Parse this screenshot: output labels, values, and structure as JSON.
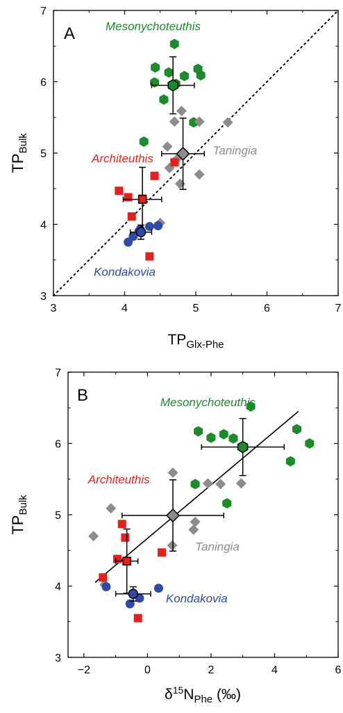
{
  "colors": {
    "mesonychoteuthis": "#1a8c2a",
    "architeuthis": "#e8201c",
    "taningia": "#8c8c8c",
    "kondakovia": "#2f4aa8",
    "axis": "#000000"
  },
  "chart_data": [
    {
      "panel": "A",
      "type": "scatter",
      "xlabel_main": "TP",
      "xlabel_sub": "Glx-Phe",
      "ylabel_main": "TP",
      "ylabel_sub": "Bulk",
      "xlim": [
        3,
        7
      ],
      "ylim": [
        3,
        7
      ],
      "xticks": [
        "3",
        "4",
        "5",
        "6",
        "7"
      ],
      "yticks": [
        "3",
        "4",
        "5",
        "6",
        "7"
      ],
      "reference_line": "1:1 dotted",
      "series": [
        {
          "name": "Mesonychoteuthis",
          "marker": "hexagon",
          "color": "#1a8c2a",
          "label_pos": [
            4.4,
            6.72
          ],
          "points": [
            [
              4.7,
              6.53
            ],
            [
              4.43,
              6.2
            ],
            [
              4.62,
              6.13
            ],
            [
              4.84,
              6.08
            ],
            [
              5.03,
              6.18
            ],
            [
              5.07,
              6.09
            ],
            [
              4.42,
              5.99
            ],
            [
              4.72,
              5.97
            ],
            [
              4.55,
              5.75
            ],
            [
              4.97,
              5.43
            ],
            [
              4.27,
              5.16
            ]
          ],
          "mean": {
            "x": 4.68,
            "y": 5.95,
            "xerr": [
              0.3,
              0.3
            ],
            "yerr": [
              0.4,
              0.4
            ]
          }
        },
        {
          "name": "Taningia",
          "marker": "diamond",
          "color": "#8c8c8c",
          "label_pos": [
            5.55,
            4.98
          ],
          "points": [
            [
              4.8,
              5.59
            ],
            [
              4.7,
              5.44
            ],
            [
              5.05,
              5.44
            ],
            [
              5.45,
              5.43
            ],
            [
              4.6,
              5.09
            ],
            [
              4.8,
              4.98
            ],
            [
              4.63,
              4.79
            ],
            [
              4.75,
              4.93
            ],
            [
              4.78,
              4.57
            ],
            [
              5.05,
              4.7
            ],
            [
              4.5,
              4.02
            ]
          ],
          "mean": {
            "x": 4.82,
            "y": 4.99,
            "xerr": [
              0.3,
              0.3
            ],
            "yerr": [
              0.5,
              0.5
            ]
          }
        },
        {
          "name": "Architeuthis",
          "marker": "square",
          "color": "#e8201c",
          "label_pos": [
            3.97,
            4.87
          ],
          "points": [
            [
              3.92,
              4.47
            ],
            [
              4.05,
              4.38
            ],
            [
              4.25,
              4.36
            ],
            [
              4.42,
              4.68
            ],
            [
              4.1,
              4.11
            ],
            [
              4.35,
              3.55
            ],
            [
              4.7,
              4.87
            ]
          ],
          "mean": {
            "x": 4.25,
            "y": 4.35,
            "xerr": [
              0.27,
              0.27
            ],
            "yerr": [
              0.45,
              0.45
            ]
          }
        },
        {
          "name": "Kondakovia",
          "marker": "circle",
          "color": "#2f4aa8",
          "label_pos": [
            4.0,
            3.28
          ],
          "points": [
            [
              4.22,
              3.93
            ],
            [
              4.35,
              3.97
            ],
            [
              4.47,
              3.98
            ],
            [
              4.12,
              3.83
            ],
            [
              4.05,
              3.75
            ],
            [
              4.2,
              3.9
            ]
          ],
          "mean": {
            "x": 4.23,
            "y": 3.89,
            "xerr": [
              0.15,
              0.15
            ],
            "yerr": [
              0.1,
              0.1
            ]
          }
        }
      ]
    },
    {
      "panel": "B",
      "type": "scatter",
      "xlabel_main": "δ",
      "xlabel_sup": "15",
      "xlabel_rest": "N",
      "xlabel_sub": "Phe",
      "xlabel_unit": " (‰)",
      "ylabel_main": "TP",
      "ylabel_sub": "Bulk",
      "xlim": [
        -2.5,
        6
      ],
      "ylim": [
        3,
        7
      ],
      "xticks": [
        "−2",
        "0",
        "2",
        "4",
        "6"
      ],
      "xtick_values": [
        -2,
        0,
        2,
        4,
        6
      ],
      "yticks": [
        "3",
        "4",
        "5",
        "6",
        "7"
      ],
      "regression_line": {
        "x1": -1.65,
        "y1": 4.05,
        "x2": 4.75,
        "y2": 6.45
      },
      "series": [
        {
          "name": "Mesonychoteuthis",
          "marker": "hexagon",
          "color": "#1a8c2a",
          "label_pos": [
            1.9,
            6.52
          ],
          "points": [
            [
              3.25,
              6.52
            ],
            [
              4.7,
              6.2
            ],
            [
              1.6,
              6.17
            ],
            [
              2.0,
              6.08
            ],
            [
              2.4,
              6.13
            ],
            [
              2.7,
              6.07
            ],
            [
              5.1,
              6.0
            ],
            [
              4.5,
              5.75
            ],
            [
              1.5,
              5.43
            ],
            [
              2.5,
              5.16
            ]
          ],
          "mean": {
            "x": 3.0,
            "y": 5.95,
            "xerr": [
              1.3,
              1.3
            ],
            "yerr": [
              0.4,
              0.4
            ]
          }
        },
        {
          "name": "Taningia",
          "marker": "diamond",
          "color": "#8c8c8c",
          "label_pos": [
            2.2,
            4.5
          ],
          "points": [
            [
              0.8,
              5.59
            ],
            [
              1.9,
              5.44
            ],
            [
              2.3,
              5.43
            ],
            [
              2.95,
              5.44
            ],
            [
              -1.15,
              5.09
            ],
            [
              1.5,
              4.9
            ],
            [
              1.45,
              4.79
            ],
            [
              0.78,
              4.57
            ],
            [
              -1.7,
              4.7
            ],
            [
              -1.35,
              4.02
            ]
          ],
          "mean": {
            "x": 0.8,
            "y": 4.99,
            "xerr": [
              1.6,
              1.6
            ],
            "yerr": [
              0.5,
              0.5
            ]
          }
        },
        {
          "name": "Architeuthis",
          "marker": "square",
          "color": "#e8201c",
          "label_pos": [
            -0.9,
            5.44
          ],
          "points": [
            [
              -0.8,
              4.87
            ],
            [
              -0.7,
              4.68
            ],
            [
              -0.95,
              4.38
            ],
            [
              0.45,
              4.47
            ],
            [
              -1.4,
              4.12
            ],
            [
              -0.3,
              3.55
            ]
          ],
          "mean": {
            "x": -0.65,
            "y": 4.35,
            "xerr": [
              0.35,
              0.35
            ],
            "yerr": [
              0.45,
              0.45
            ]
          }
        },
        {
          "name": "Kondakovia",
          "marker": "circle",
          "color": "#2f4aa8",
          "label_pos": [
            1.55,
            3.77
          ],
          "points": [
            [
              -1.3,
              3.99
            ],
            [
              -0.55,
              3.75
            ],
            [
              -0.25,
              3.83
            ],
            [
              0.35,
              3.97
            ],
            [
              -0.45,
              3.9
            ]
          ],
          "mean": {
            "x": -0.45,
            "y": 3.89,
            "xerr": [
              0.55,
              0.55
            ],
            "yerr": [
              0.1,
              0.1
            ]
          }
        }
      ]
    }
  ]
}
